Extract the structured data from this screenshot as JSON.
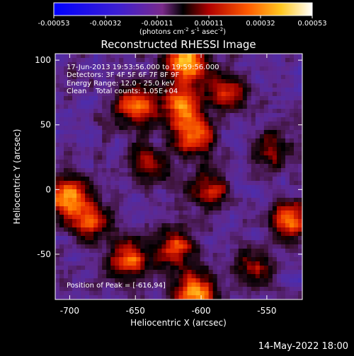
{
  "colorbar": {
    "colormap": "blue-purple-red-yellow-white",
    "ticks": [
      "-0.00053",
      "-0.00032",
      "-0.00011",
      "0.00011",
      "0.00032",
      "0.00053"
    ],
    "unit_label_main": "(photons cm",
    "unit_label_sup1": "-2",
    "unit_label_mid1": " s",
    "unit_label_sup2": "-1",
    "unit_label_mid2": " asec",
    "unit_label_sup3": "-2",
    "unit_label_end": ")"
  },
  "chart_data": {
    "type": "heatmap",
    "title": "Reconstructed RHESSI Image",
    "xlabel": "Heliocentric X (arcsec)",
    "ylabel": "Heliocentric Y (arcsec)",
    "xlim": [
      -711,
      -523
    ],
    "ylim": [
      -85,
      105
    ],
    "x_ticks": [
      -700,
      -650,
      -600,
      -550
    ],
    "y_ticks": [
      100,
      50,
      0,
      -50
    ],
    "x_tick_labels": [
      "-700",
      "-650",
      "-600",
      "-550"
    ],
    "y_tick_labels": [
      "100",
      "50",
      "0",
      "-50"
    ],
    "value_range": [
      -0.00053,
      0.00053
    ],
    "bright_sources": [
      {
        "x": -611,
        "y": 98,
        "intensity": 1.0
      },
      {
        "x": -650,
        "y": 65,
        "intensity": 0.85
      },
      {
        "x": -615,
        "y": 65,
        "intensity": 0.8
      },
      {
        "x": -605,
        "y": 40,
        "intensity": 0.75
      },
      {
        "x": -700,
        "y": -5,
        "intensity": 0.85
      },
      {
        "x": -685,
        "y": -25,
        "intensity": 0.75
      },
      {
        "x": -655,
        "y": -55,
        "intensity": 0.8
      },
      {
        "x": -620,
        "y": -45,
        "intensity": 0.7
      },
      {
        "x": -605,
        "y": -80,
        "intensity": 0.95
      },
      {
        "x": -640,
        "y": 20,
        "intensity": 0.6
      },
      {
        "x": -580,
        "y": 75,
        "intensity": 0.6
      },
      {
        "x": -530,
        "y": -25,
        "intensity": 0.8
      },
      {
        "x": -545,
        "y": 30,
        "intensity": 0.45
      },
      {
        "x": -595,
        "y": 0,
        "intensity": 0.55
      },
      {
        "x": -560,
        "y": -60,
        "intensity": 0.5
      }
    ],
    "annotations": [
      "17-Jun-2013 19:53:56.000 to 19:59:56.000",
      "Detectors: 3F 4F 5F 6F 7F 8F 9F",
      "Energy Range: 12.0 - 25.0 keV",
      "Clean    Total counts: 1.05E+04",
      "Position of Peak = [-616,94]"
    ]
  },
  "footer": {
    "timestamp": "14-May-2022 18:00"
  }
}
